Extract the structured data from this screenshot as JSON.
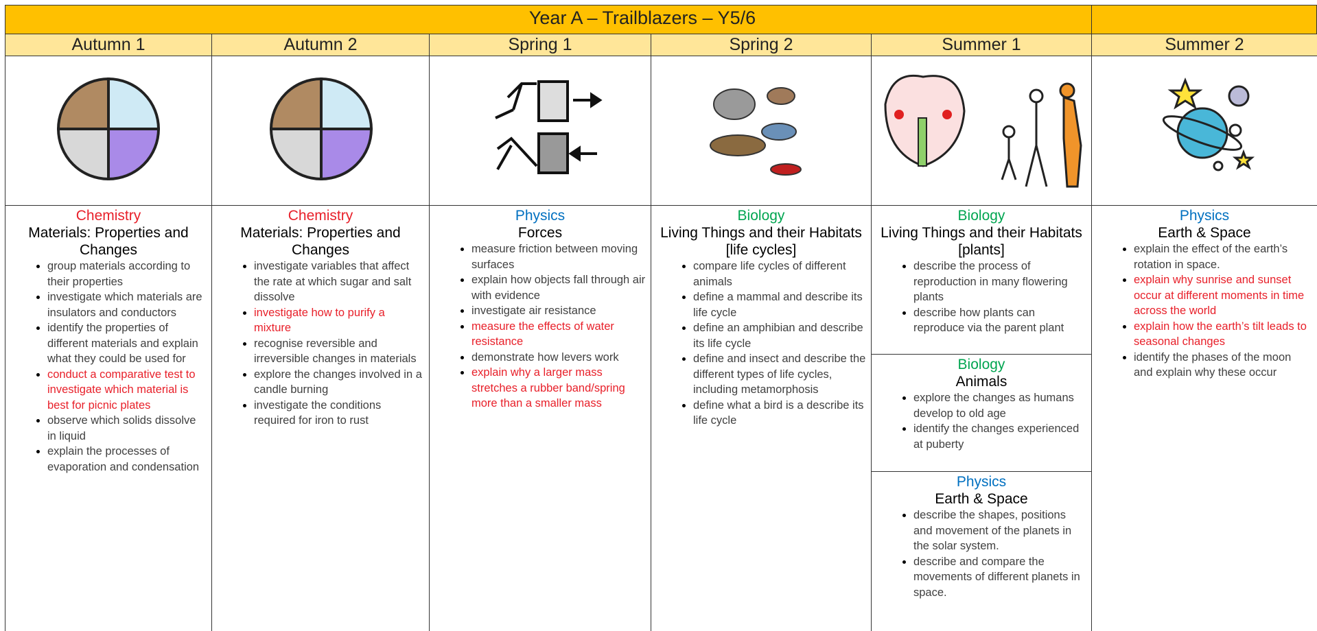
{
  "title": "Year A – Trailblazers – Y5/6",
  "columns": [
    {
      "term": "Autumn 1",
      "sections": [
        {
          "subject": "Chemistry",
          "subject_color": "#e8202a",
          "topic": "Materials: Properties and Changes",
          "objectives": [
            {
              "text": "group materials according to their properties",
              "color": "#404040"
            },
            {
              "text": "investigate which materials are insulators and conductors",
              "color": "#404040"
            },
            {
              "text": "identify the properties of different materials and explain what they could be used for",
              "color": "#404040"
            },
            {
              "text": "conduct a comparative test to investigate which material is best for picnic plates",
              "color": "#e8202a"
            },
            {
              "text": "observe which solids dissolve in liquid",
              "color": "#404040"
            },
            {
              "text": "explain the processes of evaporation and condensation",
              "color": "#404040"
            }
          ]
        }
      ]
    },
    {
      "term": "Autumn 2",
      "sections": [
        {
          "subject": "Chemistry",
          "subject_color": "#e8202a",
          "topic": "Materials: Properties and Changes",
          "objectives": [
            {
              "text": "investigate variables that affect the rate at which sugar and salt dissolve",
              "color": "#404040"
            },
            {
              "text": "investigate how to purify a mixture",
              "color": "#e8202a"
            },
            {
              "text": "recognise reversible and irreversible changes in materials",
              "color": "#404040"
            },
            {
              "text": "explore the changes involved in a candle burning",
              "color": "#404040"
            },
            {
              "text": "investigate the conditions required for iron to rust",
              "color": "#404040"
            }
          ]
        }
      ]
    },
    {
      "term": "Spring 1",
      "sections": [
        {
          "subject": "Physics",
          "subject_color": "#0070c0",
          "topic": "Forces",
          "objectives": [
            {
              "text": "measure friction between moving surfaces",
              "color": "#404040"
            },
            {
              "text": "explain how objects fall through air with evidence",
              "color": "#404040"
            },
            {
              "text": "investigate air resistance",
              "color": "#404040"
            },
            {
              "text": "measure the effects of water resistance",
              "color": "#e8202a"
            },
            {
              "text": "demonstrate how levers work",
              "color": "#404040"
            },
            {
              "text": "explain why a larger mass stretches a rubber band/spring more than a smaller mass",
              "color": "#e8202a"
            }
          ]
        }
      ]
    },
    {
      "term": "Spring 2",
      "sections": [
        {
          "subject": "Biology",
          "subject_color": "#00a550",
          "topic": "Living Things and their Habitats [life cycles]",
          "objectives": [
            {
              "text": "compare life cycles of different animals",
              "color": "#404040"
            },
            {
              "text": "define a mammal and describe its life cycle",
              "color": "#404040"
            },
            {
              "text": "define an amphibian and describe its life cycle",
              "color": "#404040"
            },
            {
              "text": "define and insect and describe the different types of life cycles, including metamorphosis",
              "color": "#404040"
            },
            {
              "text": "define what a bird is a describe its life cycle",
              "color": "#404040"
            }
          ]
        }
      ]
    },
    {
      "term": "Summer 1",
      "sections": [
        {
          "subject": "Biology",
          "subject_color": "#00a550",
          "topic": "Living Things and their Habitats [plants]",
          "objectives": [
            {
              "text": "describe the process of reproduction in many flowering plants",
              "color": "#404040"
            },
            {
              "text": "describe how plants can reproduce via the parent plant",
              "color": "#404040"
            }
          ]
        },
        {
          "subject": "Biology",
          "subject_color": "#00a550",
          "topic": "Animals",
          "objectives": [
            {
              "text": "explore the changes as humans develop to old age",
              "color": "#404040"
            },
            {
              "text": "identify the changes experienced at puberty",
              "color": "#404040"
            }
          ]
        },
        {
          "subject": "Physics",
          "subject_color": "#0070c0",
          "topic": "Earth & Space",
          "objectives": [
            {
              "text": "describe the shapes, positions and movement of the planets in the solar system.",
              "color": "#404040"
            },
            {
              "text": "describe and compare the movements of different planets in space.",
              "color": "#404040"
            }
          ]
        }
      ]
    },
    {
      "term": "Summer 2",
      "sections": [
        {
          "subject": "Physics",
          "subject_color": "#0070c0",
          "topic": "Earth & Space",
          "objectives": [
            {
              "text": "explain the effect of the earth’s rotation in space.",
              "color": "#404040"
            },
            {
              "text": "explain why sunrise and sunset occur at different moments in time across the world",
              "color": "#e8202a"
            },
            {
              "text": "explain how the earth’s tilt leads to seasonal changes",
              "color": "#e8202a"
            },
            {
              "text": "identify the phases of the moon and explain why these occur",
              "color": "#404040"
            }
          ]
        }
      ]
    }
  ]
}
